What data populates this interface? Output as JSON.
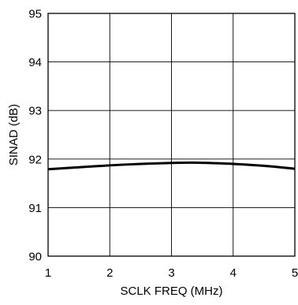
{
  "chart_data": {
    "type": "line",
    "title": "",
    "xlabel": "SCLK FREQ (MHz)",
    "ylabel": "SINAD (dB)",
    "xlim": [
      1,
      5
    ],
    "ylim": [
      90,
      95
    ],
    "xticks": [
      1,
      2,
      3,
      4,
      5
    ],
    "yticks": [
      90,
      91,
      92,
      93,
      94,
      95
    ],
    "xtick_labels": [
      "1",
      "2",
      "3",
      "4",
      "5"
    ],
    "ytick_labels": [
      "90",
      "91",
      "92",
      "93",
      "94",
      "95"
    ],
    "grid": true,
    "legend": "none",
    "line_color": "#000000",
    "grid_color": "#000000",
    "series": [
      {
        "x": [
          1.0,
          1.5,
          2.0,
          2.5,
          3.0,
          3.3,
          3.5,
          4.0,
          4.5,
          5.0
        ],
        "y": [
          91.79,
          91.83,
          91.87,
          91.9,
          91.92,
          91.925,
          91.922,
          91.9,
          91.86,
          91.8
        ]
      }
    ]
  }
}
